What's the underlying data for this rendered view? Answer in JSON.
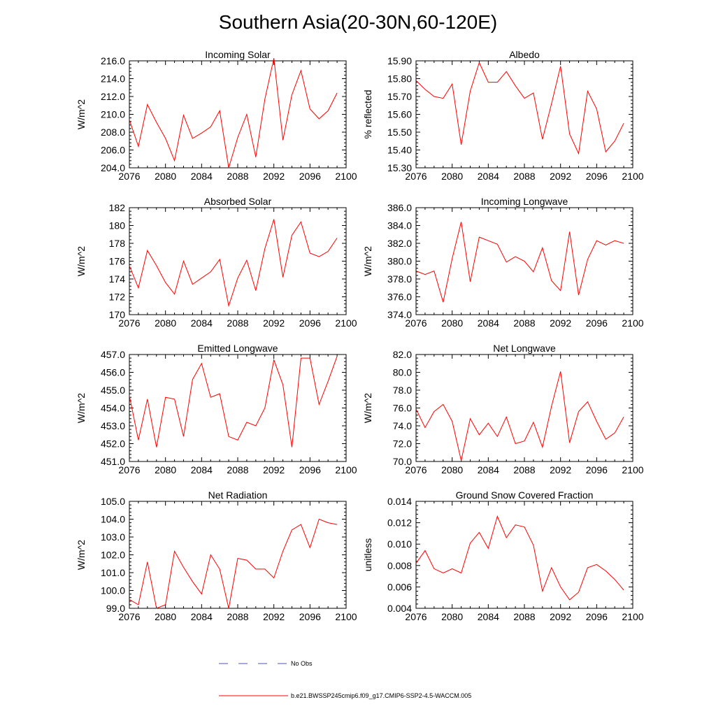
{
  "figure_title": "Southern Asia(20-30N,60-120E)",
  "colors": {
    "model": "#ff0000",
    "obs": "#5050c0"
  },
  "legend": [
    {
      "name": "obs",
      "label": "No Obs",
      "style": "dashed"
    },
    {
      "name": "model",
      "label": "b.e21.BWSSP245cmip6.f09_g17.CMIP6-SSP2-4.5-WACCM.005",
      "style": "solid"
    }
  ],
  "chart_data": [
    {
      "type": "line",
      "title": "Incoming Solar",
      "xlabel": "",
      "ylabel": "W/m^2",
      "xlim": [
        2076,
        2100
      ],
      "ylim": [
        204.0,
        216.0
      ],
      "xticks": [
        2076,
        2080,
        2084,
        2088,
        2092,
        2096,
        2100
      ],
      "xtick_labels": [
        "2076",
        "2080",
        "2084",
        "2088",
        "2092",
        "2096",
        "2100"
      ],
      "yticks": [
        204,
        206,
        208,
        210,
        212,
        214,
        216
      ],
      "ytick_labels": [
        "204.0",
        "206.0",
        "208.0",
        "210.0",
        "212.0",
        "214.0",
        "216.0"
      ],
      "x": [
        2076,
        2077,
        2078,
        2079,
        2080,
        2081,
        2082,
        2083,
        2084,
        2085,
        2086,
        2087,
        2088,
        2089,
        2090,
        2091,
        2092,
        2093,
        2094,
        2095,
        2096,
        2097,
        2098,
        2099
      ],
      "series": [
        {
          "name": "model",
          "values": [
            209.4,
            206.4,
            211.1,
            209.1,
            207.3,
            204.8,
            209.9,
            207.3,
            207.9,
            208.6,
            210.4,
            204.0,
            207.4,
            210.0,
            205.2,
            211.7,
            216.3,
            207.1,
            212.2,
            214.9,
            210.6,
            209.5,
            210.4,
            212.4
          ]
        }
      ]
    },
    {
      "type": "line",
      "title": "Albedo",
      "xlabel": "",
      "ylabel": "% reflected",
      "xlim": [
        2076,
        2100
      ],
      "ylim": [
        15.3,
        15.9
      ],
      "xticks": [
        2076,
        2080,
        2084,
        2088,
        2092,
        2096,
        2100
      ],
      "xtick_labels": [
        "2076",
        "2080",
        "2084",
        "2088",
        "2092",
        "2096",
        "2100"
      ],
      "yticks": [
        15.3,
        15.4,
        15.5,
        15.6,
        15.7,
        15.8,
        15.9
      ],
      "ytick_labels": [
        "15.30",
        "15.40",
        "15.50",
        "15.60",
        "15.70",
        "15.80",
        "15.90"
      ],
      "x": [
        2076,
        2077,
        2078,
        2079,
        2080,
        2081,
        2082,
        2083,
        2084,
        2085,
        2086,
        2087,
        2088,
        2089,
        2090,
        2091,
        2092,
        2093,
        2094,
        2095,
        2096,
        2097,
        2098,
        2099
      ],
      "series": [
        {
          "name": "model",
          "values": [
            15.79,
            15.74,
            15.7,
            15.69,
            15.77,
            15.43,
            15.73,
            15.89,
            15.78,
            15.78,
            15.84,
            15.76,
            15.69,
            15.72,
            15.46,
            15.66,
            15.87,
            15.49,
            15.38,
            15.73,
            15.63,
            15.39,
            15.45,
            15.55
          ]
        }
      ]
    },
    {
      "type": "line",
      "title": "Absorbed Solar",
      "xlabel": "",
      "ylabel": "W/m^2",
      "xlim": [
        2076,
        2100
      ],
      "ylim": [
        170,
        182
      ],
      "xticks": [
        2076,
        2080,
        2084,
        2088,
        2092,
        2096,
        2100
      ],
      "xtick_labels": [
        "2076",
        "2080",
        "2084",
        "2088",
        "2092",
        "2096",
        "2100"
      ],
      "yticks": [
        170,
        172,
        174,
        176,
        178,
        180,
        182
      ],
      "ytick_labels": [
        "170",
        "172",
        "174",
        "176",
        "178",
        "180",
        "182"
      ],
      "x": [
        2076,
        2077,
        2078,
        2079,
        2080,
        2081,
        2082,
        2083,
        2084,
        2085,
        2086,
        2087,
        2088,
        2089,
        2090,
        2091,
        2092,
        2093,
        2094,
        2095,
        2096,
        2097,
        2098,
        2099
      ],
      "series": [
        {
          "name": "model",
          "values": [
            175.5,
            173.0,
            177.2,
            175.5,
            173.6,
            172.3,
            176.0,
            173.4,
            174.1,
            174.8,
            176.2,
            171.0,
            174.1,
            176.1,
            172.7,
            177.4,
            180.7,
            174.2,
            178.9,
            180.4,
            176.9,
            176.5,
            177.1,
            178.6
          ]
        }
      ]
    },
    {
      "type": "line",
      "title": "Incoming Longwave",
      "xlabel": "",
      "ylabel": "W/m^2",
      "xlim": [
        2076,
        2100
      ],
      "ylim": [
        374.0,
        386.0
      ],
      "xticks": [
        2076,
        2080,
        2084,
        2088,
        2092,
        2096,
        2100
      ],
      "xtick_labels": [
        "2076",
        "2080",
        "2084",
        "2088",
        "2092",
        "2096",
        "2100"
      ],
      "yticks": [
        374,
        376,
        378,
        380,
        382,
        384,
        386
      ],
      "ytick_labels": [
        "374.0",
        "376.0",
        "378.0",
        "380.0",
        "382.0",
        "384.0",
        "386.0"
      ],
      "x": [
        2076,
        2077,
        2078,
        2079,
        2080,
        2081,
        2082,
        2083,
        2084,
        2085,
        2086,
        2087,
        2088,
        2089,
        2090,
        2091,
        2092,
        2093,
        2094,
        2095,
        2096,
        2097,
        2098,
        2099
      ],
      "series": [
        {
          "name": "model",
          "values": [
            378.9,
            378.5,
            378.9,
            375.4,
            380.3,
            384.4,
            377.7,
            382.7,
            382.3,
            381.9,
            379.9,
            380.5,
            380.0,
            378.8,
            381.5,
            377.8,
            376.7,
            383.3,
            376.2,
            380.2,
            382.3,
            381.8,
            382.3,
            382.0
          ]
        }
      ]
    },
    {
      "type": "line",
      "title": "Emitted Longwave",
      "xlabel": "",
      "ylabel": "W/m^2",
      "xlim": [
        2076,
        2100
      ],
      "ylim": [
        451.0,
        457.0
      ],
      "xticks": [
        2076,
        2080,
        2084,
        2088,
        2092,
        2096,
        2100
      ],
      "xtick_labels": [
        "2076",
        "2080",
        "2084",
        "2088",
        "2092",
        "2096",
        "2100"
      ],
      "yticks": [
        451,
        452,
        453,
        454,
        455,
        456,
        457
      ],
      "ytick_labels": [
        "451.0",
        "452.0",
        "453.0",
        "454.0",
        "455.0",
        "456.0",
        "457.0"
      ],
      "x": [
        2076,
        2077,
        2078,
        2079,
        2080,
        2081,
        2082,
        2083,
        2084,
        2085,
        2086,
        2087,
        2088,
        2089,
        2090,
        2091,
        2092,
        2093,
        2094,
        2095,
        2096,
        2097,
        2098,
        2099
      ],
      "series": [
        {
          "name": "model",
          "values": [
            454.7,
            452.2,
            454.5,
            451.8,
            454.6,
            454.5,
            452.4,
            455.6,
            456.5,
            454.6,
            454.8,
            452.4,
            452.2,
            453.2,
            453.0,
            454.0,
            456.7,
            455.3,
            451.8,
            456.8,
            456.8,
            454.2,
            455.5,
            456.9
          ]
        }
      ]
    },
    {
      "type": "line",
      "title": "Net Longwave",
      "xlabel": "",
      "ylabel": "W/m^2",
      "xlim": [
        2076,
        2100
      ],
      "ylim": [
        70.0,
        82.0
      ],
      "xticks": [
        2076,
        2080,
        2084,
        2088,
        2092,
        2096,
        2100
      ],
      "xtick_labels": [
        "2076",
        "2080",
        "2084",
        "2088",
        "2092",
        "2096",
        "2100"
      ],
      "yticks": [
        70,
        72,
        74,
        76,
        78,
        80,
        82
      ],
      "ytick_labels": [
        "70.0",
        "72.0",
        "74.0",
        "76.0",
        "78.0",
        "80.0",
        "82.0"
      ],
      "x": [
        2076,
        2077,
        2078,
        2079,
        2080,
        2081,
        2082,
        2083,
        2084,
        2085,
        2086,
        2087,
        2088,
        2089,
        2090,
        2091,
        2092,
        2093,
        2094,
        2095,
        2096,
        2097,
        2098,
        2099
      ],
      "series": [
        {
          "name": "model",
          "values": [
            75.9,
            73.8,
            75.6,
            76.4,
            74.5,
            70.1,
            74.8,
            73.0,
            74.3,
            72.8,
            75.0,
            72.0,
            72.3,
            74.4,
            71.6,
            76.2,
            80.1,
            72.1,
            75.6,
            76.7,
            74.5,
            72.5,
            73.2,
            75.0
          ]
        }
      ]
    },
    {
      "type": "line",
      "title": "Net Radiation",
      "xlabel": "",
      "ylabel": "W/m^2",
      "xlim": [
        2076,
        2100
      ],
      "ylim": [
        99.0,
        105.0
      ],
      "xticks": [
        2076,
        2080,
        2084,
        2088,
        2092,
        2096,
        2100
      ],
      "xtick_labels": [
        "2076",
        "2080",
        "2084",
        "2088",
        "2092",
        "2096",
        "2100"
      ],
      "yticks": [
        99,
        100,
        101,
        102,
        103,
        104,
        105
      ],
      "ytick_labels": [
        "99.0",
        "100.0",
        "101.0",
        "102.0",
        "103.0",
        "104.0",
        "105.0"
      ],
      "x": [
        2076,
        2077,
        2078,
        2079,
        2080,
        2081,
        2082,
        2083,
        2084,
        2085,
        2086,
        2087,
        2088,
        2089,
        2090,
        2091,
        2092,
        2093,
        2094,
        2095,
        2096,
        2097,
        2098,
        2099
      ],
      "series": [
        {
          "name": "model",
          "values": [
            99.5,
            99.2,
            101.6,
            99.0,
            99.2,
            102.2,
            101.3,
            100.5,
            99.8,
            102.0,
            101.2,
            99.0,
            101.8,
            101.7,
            101.2,
            101.2,
            100.7,
            102.2,
            103.4,
            103.7,
            102.4,
            104.0,
            103.8,
            103.7
          ]
        }
      ]
    },
    {
      "type": "line",
      "title": "Ground Snow Covered Fraction",
      "xlabel": "",
      "ylabel": "unitless",
      "xlim": [
        2076,
        2100
      ],
      "ylim": [
        0.004,
        0.014
      ],
      "xticks": [
        2076,
        2080,
        2084,
        2088,
        2092,
        2096,
        2100
      ],
      "xtick_labels": [
        "2076",
        "2080",
        "2084",
        "2088",
        "2092",
        "2096",
        "2100"
      ],
      "yticks": [
        0.004,
        0.006,
        0.008,
        0.01,
        0.012,
        0.014
      ],
      "ytick_labels": [
        "0.004",
        "0.006",
        "0.008",
        "0.010",
        "0.012",
        "0.014"
      ],
      "x": [
        2076,
        2077,
        2078,
        2079,
        2080,
        2081,
        2082,
        2083,
        2084,
        2085,
        2086,
        2087,
        2088,
        2089,
        2090,
        2091,
        2092,
        2093,
        2094,
        2095,
        2096,
        2097,
        2098,
        2099
      ],
      "series": [
        {
          "name": "model",
          "values": [
            0.0082,
            0.0094,
            0.0077,
            0.0073,
            0.0077,
            0.0073,
            0.0101,
            0.0111,
            0.0096,
            0.0126,
            0.0106,
            0.0118,
            0.0116,
            0.0099,
            0.0056,
            0.0078,
            0.006,
            0.0048,
            0.0055,
            0.0078,
            0.0081,
            0.0075,
            0.0067,
            0.0057
          ]
        }
      ]
    }
  ]
}
